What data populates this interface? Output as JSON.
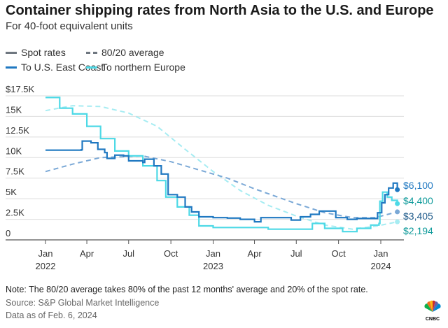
{
  "title": "Container shipping rates from North Asia to the U.S. and Europe",
  "subtitle": "For 40-foot equivalent units",
  "legend": {
    "spot": "Spot rates",
    "avg": "80/20 average",
    "us": "To U.S. East Coast",
    "eu": "To northern Europe"
  },
  "colors": {
    "us": "#1f78c1",
    "eu": "#4dd9e6",
    "us_avg": "#7aa8d6",
    "eu_avg": "#a6ecf2",
    "eu_label": "#0e9a9a",
    "us_avg_label": "#1e5a8a",
    "legend_gray": "#6f7780"
  },
  "notes": {
    "note": "Note: The 80/20 average takes 80% of the past 12 months' average and 20% of the spot rate.",
    "source": "Source: S&P Global Market Intelligence",
    "date": "Data as of Feb. 6, 2024"
  },
  "logo": "CNBC",
  "chart_data": {
    "type": "line",
    "ylim": [
      0,
      17500
    ],
    "yticks": [
      {
        "v": 0,
        "l": "0"
      },
      {
        "v": 2500,
        "l": "2.5K"
      },
      {
        "v": 5000,
        "l": "5K"
      },
      {
        "v": 7500,
        "l": "7.5K"
      },
      {
        "v": 10000,
        "l": "10K"
      },
      {
        "v": 12500,
        "l": "12.5K"
      },
      {
        "v": 15000,
        "l": "15K"
      },
      {
        "v": 17500,
        "l": "$17.5K"
      }
    ],
    "xticks": [
      {
        "d": "2022-01-01",
        "l": "Jan",
        "y": "2022"
      },
      {
        "d": "2022-04-01",
        "l": "Apr"
      },
      {
        "d": "2022-07-01",
        "l": "Jul"
      },
      {
        "d": "2022-10-01",
        "l": "Oct"
      },
      {
        "d": "2023-01-01",
        "l": "Jan",
        "y": "2023"
      },
      {
        "d": "2023-04-01",
        "l": "Apr"
      },
      {
        "d": "2023-07-01",
        "l": "Jul"
      },
      {
        "d": "2023-10-01",
        "l": "Oct"
      },
      {
        "d": "2024-01-01",
        "l": "Jan",
        "y": "2024"
      }
    ],
    "xlim": [
      "2022-01-01",
      "2024-02-06"
    ],
    "series": [
      {
        "name": "To U.S. East Coast",
        "kind": "spot",
        "color": "#1f78c1",
        "end_label": "$6,100",
        "label_color": "#1f78c1",
        "points": [
          [
            "2022-01-01",
            10900
          ],
          [
            "2022-03-20",
            10950
          ],
          [
            "2022-03-22",
            12000
          ],
          [
            "2022-04-10",
            11800
          ],
          [
            "2022-04-25",
            11000
          ],
          [
            "2022-05-10",
            10600
          ],
          [
            "2022-05-15",
            9900
          ],
          [
            "2022-06-01",
            10300
          ],
          [
            "2022-06-20",
            10200
          ],
          [
            "2022-07-01",
            9600
          ],
          [
            "2022-08-01",
            9400
          ],
          [
            "2022-08-05",
            9800
          ],
          [
            "2022-08-25",
            9000
          ],
          [
            "2022-09-10",
            8000
          ],
          [
            "2022-09-25",
            5500
          ],
          [
            "2022-10-15",
            5200
          ],
          [
            "2022-11-01",
            4000
          ],
          [
            "2022-11-15",
            3400
          ],
          [
            "2022-12-01",
            2800
          ],
          [
            "2023-01-01",
            2700
          ],
          [
            "2023-02-01",
            2650
          ],
          [
            "2023-03-01",
            2500
          ],
          [
            "2023-04-01",
            2200
          ],
          [
            "2023-04-15",
            2700
          ],
          [
            "2023-05-15",
            2700
          ],
          [
            "2023-06-20",
            2400
          ],
          [
            "2023-07-10",
            2800
          ],
          [
            "2023-08-01",
            3100
          ],
          [
            "2023-08-20",
            3500
          ],
          [
            "2023-09-10",
            3500
          ],
          [
            "2023-09-25",
            2700
          ],
          [
            "2023-10-20",
            2500
          ],
          [
            "2023-11-10",
            2600
          ],
          [
            "2023-12-15",
            2600
          ],
          [
            "2023-12-25",
            3300
          ],
          [
            "2024-01-03",
            4500
          ],
          [
            "2024-01-10",
            5500
          ],
          [
            "2024-01-18",
            6300
          ],
          [
            "2024-01-28",
            6900
          ],
          [
            "2024-02-06",
            6100
          ]
        ]
      },
      {
        "name": "To northern Europe",
        "kind": "spot",
        "color": "#4dd9e6",
        "end_label": "$4,400",
        "label_color": "#0e9a9a",
        "points": [
          [
            "2022-01-01",
            17300
          ],
          [
            "2022-02-01",
            16000
          ],
          [
            "2022-03-01",
            15300
          ],
          [
            "2022-04-01",
            13800
          ],
          [
            "2022-05-01",
            12300
          ],
          [
            "2022-06-01",
            10800
          ],
          [
            "2022-07-01",
            10200
          ],
          [
            "2022-08-01",
            9000
          ],
          [
            "2022-09-01",
            7200
          ],
          [
            "2022-09-20",
            5200
          ],
          [
            "2022-10-15",
            4000
          ],
          [
            "2022-11-10",
            3000
          ],
          [
            "2022-12-01",
            1700
          ],
          [
            "2023-01-01",
            1500
          ],
          [
            "2023-03-01",
            1500
          ],
          [
            "2023-05-01",
            1300
          ],
          [
            "2023-07-15",
            1300
          ],
          [
            "2023-08-05",
            2000
          ],
          [
            "2023-09-01",
            1400
          ],
          [
            "2023-10-10",
            1000
          ],
          [
            "2023-11-05",
            1000
          ],
          [
            "2023-11-10",
            1400
          ],
          [
            "2023-12-10",
            1800
          ],
          [
            "2023-12-28",
            2000
          ],
          [
            "2023-12-30",
            4700
          ],
          [
            "2024-01-05",
            5800
          ],
          [
            "2024-01-15",
            5200
          ],
          [
            "2024-01-25",
            4800
          ],
          [
            "2024-02-06",
            4400
          ]
        ]
      },
      {
        "name": "To U.S. East Coast 80/20 average",
        "kind": "avg",
        "color": "#7aa8d6",
        "end_label": "$3,405",
        "label_color": "#1e5a8a",
        "points": [
          [
            "2022-01-01",
            8300
          ],
          [
            "2022-03-01",
            9200
          ],
          [
            "2022-05-01",
            10000
          ],
          [
            "2022-08-01",
            10200
          ],
          [
            "2022-10-01",
            9500
          ],
          [
            "2022-12-01",
            8500
          ],
          [
            "2023-02-01",
            7500
          ],
          [
            "2023-04-01",
            6200
          ],
          [
            "2023-07-01",
            4400
          ],
          [
            "2023-09-01",
            3300
          ],
          [
            "2023-11-01",
            2700
          ],
          [
            "2023-12-20",
            2700
          ],
          [
            "2024-02-06",
            3405
          ]
        ]
      },
      {
        "name": "To northern Europe 80/20 average",
        "kind": "avg",
        "color": "#a6ecf2",
        "end_label": "$2,194",
        "label_color": "#0e9a9a",
        "points": [
          [
            "2022-01-01",
            15700
          ],
          [
            "2022-03-01",
            16300
          ],
          [
            "2022-05-01",
            16200
          ],
          [
            "2022-07-01",
            15400
          ],
          [
            "2022-09-01",
            13800
          ],
          [
            "2022-11-01",
            11000
          ],
          [
            "2023-01-01",
            8300
          ],
          [
            "2023-03-01",
            6000
          ],
          [
            "2023-05-01",
            4200
          ],
          [
            "2023-07-01",
            2900
          ],
          [
            "2023-09-01",
            1800
          ],
          [
            "2023-11-01",
            1300
          ],
          [
            "2023-12-25",
            1700
          ],
          [
            "2024-02-06",
            2194
          ]
        ]
      }
    ]
  }
}
